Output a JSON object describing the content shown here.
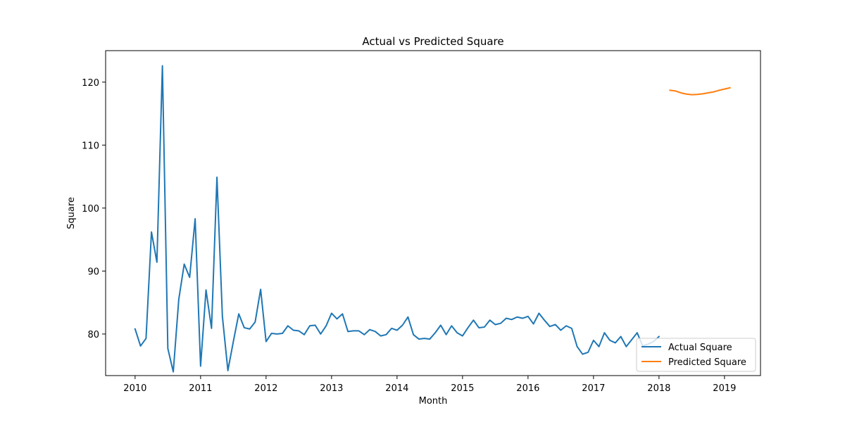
{
  "chart_data": {
    "type": "line",
    "title": "Actual vs Predicted Square",
    "xlabel": "Month",
    "ylabel": "Square",
    "xlim": [
      2009.55,
      2019.55
    ],
    "ylim": [
      73.4,
      125.0
    ],
    "xticks": [
      2010,
      2011,
      2012,
      2013,
      2014,
      2015,
      2016,
      2017,
      2018,
      2019
    ],
    "xtick_labels": [
      "2010",
      "2011",
      "2012",
      "2013",
      "2014",
      "2015",
      "2016",
      "2017",
      "2018",
      "2019"
    ],
    "yticks": [
      80,
      90,
      100,
      110,
      120
    ],
    "ytick_labels": [
      "80",
      "90",
      "100",
      "110",
      "120"
    ],
    "grid": false,
    "legend_position": "bottom-right",
    "series": [
      {
        "name": "Actual Square",
        "color": "#1f77b4",
        "x": [
          2010.0,
          2010.083,
          2010.167,
          2010.25,
          2010.333,
          2010.417,
          2010.5,
          2010.583,
          2010.667,
          2010.75,
          2010.833,
          2010.917,
          2011.0,
          2011.083,
          2011.167,
          2011.25,
          2011.333,
          2011.417,
          2011.5,
          2011.583,
          2011.667,
          2011.75,
          2011.833,
          2011.917,
          2012.0,
          2012.083,
          2012.167,
          2012.25,
          2012.333,
          2012.417,
          2012.5,
          2012.583,
          2012.667,
          2012.75,
          2012.833,
          2012.917,
          2013.0,
          2013.083,
          2013.167,
          2013.25,
          2013.333,
          2013.417,
          2013.5,
          2013.583,
          2013.667,
          2013.75,
          2013.833,
          2013.917,
          2014.0,
          2014.083,
          2014.167,
          2014.25,
          2014.333,
          2014.417,
          2014.5,
          2014.583,
          2014.667,
          2014.75,
          2014.833,
          2014.917,
          2015.0,
          2015.083,
          2015.167,
          2015.25,
          2015.333,
          2015.417,
          2015.5,
          2015.583,
          2015.667,
          2015.75,
          2015.833,
          2015.917,
          2016.0,
          2016.083,
          2016.167,
          2016.25,
          2016.333,
          2016.417,
          2016.5,
          2016.583,
          2016.667,
          2016.75,
          2016.833,
          2016.917,
          2017.0,
          2017.083,
          2017.167,
          2017.25,
          2017.333,
          2017.417,
          2017.5,
          2017.583,
          2017.667,
          2017.75,
          2017.833,
          2017.917,
          2018.0
        ],
        "values": [
          80.8,
          78.1,
          79.3,
          96.2,
          91.4,
          122.6,
          77.7,
          74.0,
          85.5,
          91.1,
          89.0,
          98.3,
          74.9,
          87.0,
          80.9,
          104.9,
          82.8,
          74.2,
          78.8,
          83.2,
          81.0,
          80.8,
          81.9,
          87.1,
          78.8,
          80.1,
          80.0,
          80.1,
          81.3,
          80.6,
          80.5,
          79.9,
          81.3,
          81.4,
          80.0,
          81.3,
          83.3,
          82.4,
          83.2,
          80.4,
          80.5,
          80.5,
          79.9,
          80.7,
          80.4,
          79.7,
          79.9,
          80.9,
          80.6,
          81.4,
          82.7,
          79.9,
          79.2,
          79.3,
          79.2,
          80.2,
          81.4,
          79.9,
          81.3,
          80.2,
          79.7,
          81.0,
          82.2,
          81.0,
          81.1,
          82.2,
          81.5,
          81.7,
          82.5,
          82.3,
          82.7,
          82.5,
          82.8,
          81.6,
          83.3,
          82.2,
          81.2,
          81.5,
          80.6,
          81.3,
          80.9,
          78.0,
          76.8,
          77.1,
          79.0,
          78.0,
          80.2,
          79.0,
          78.6,
          79.6,
          78.0,
          79.1,
          80.2,
          78.1,
          78.4,
          78.8,
          79.6
        ]
      },
      {
        "name": "Predicted Square",
        "color": "#ff7f0e",
        "x": [
          2018.167,
          2018.25,
          2018.333,
          2018.417,
          2018.5,
          2018.583,
          2018.667,
          2018.75,
          2018.833,
          2018.917,
          2019.0,
          2019.083
        ],
        "values": [
          118.7,
          118.6,
          118.3,
          118.1,
          118.0,
          118.05,
          118.15,
          118.3,
          118.45,
          118.7,
          118.9,
          119.1
        ]
      }
    ]
  }
}
